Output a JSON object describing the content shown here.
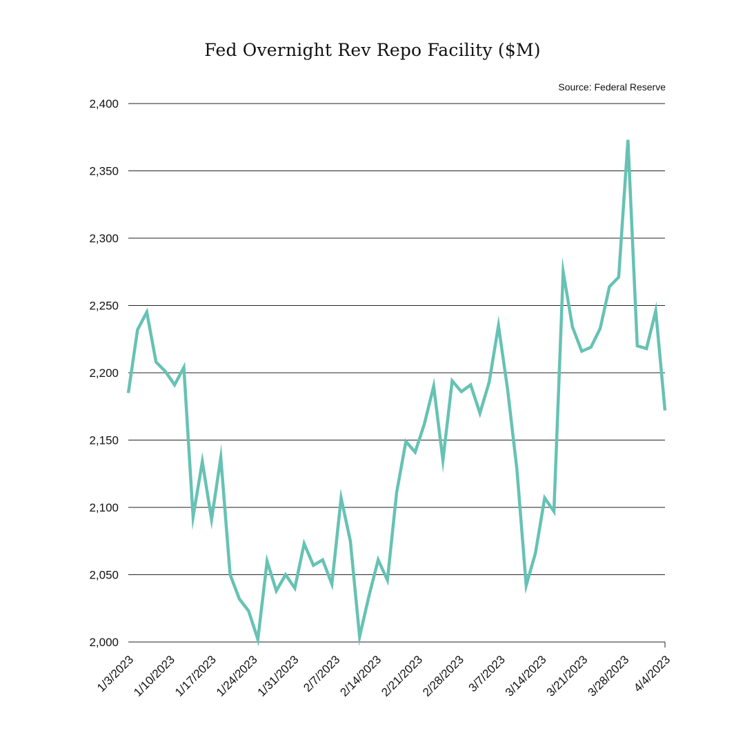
{
  "chart_data": {
    "type": "line",
    "title": "Fed Overnight Rev Repo Facility ($M)",
    "source": "Source: Federal Reserve",
    "xlabel": "",
    "ylabel": "",
    "ylim": [
      2000,
      2400
    ],
    "yticks": [
      2000,
      2050,
      2100,
      2150,
      2200,
      2250,
      2300,
      2350,
      2400
    ],
    "ytick_labels": [
      "2,000",
      "2,050",
      "2,100",
      "2,150",
      "2,200",
      "2,250",
      "2,300",
      "2,350",
      "2,400"
    ],
    "xtick_labels": [
      "1/3/2023",
      "1/10/2023",
      "1/17/2023",
      "1/24/2023",
      "1/31/2023",
      "2/7/2023",
      "2/14/2023",
      "2/21/2023",
      "2/28/2023",
      "3/7/2023",
      "3/14/2023",
      "3/21/2023",
      "3/28/2023",
      "4/4/2023"
    ],
    "grid": true,
    "line_color": "#66c2b4",
    "series": [
      {
        "values": [
          2185,
          2232,
          2245,
          2208,
          2201,
          2191,
          2204,
          2093,
          2134,
          2091,
          2137,
          2050,
          2032,
          2023,
          2002,
          2060,
          2038,
          2050,
          2040,
          2073,
          2057,
          2061,
          2043,
          2107,
          2075,
          2004,
          2034,
          2061,
          2046,
          2111,
          2149,
          2141,
          2162,
          2190,
          2135,
          2194,
          2186,
          2191,
          2170,
          2193,
          2235,
          2187,
          2128,
          2042,
          2066,
          2107,
          2097,
          2275,
          2234,
          2216,
          2219,
          2233,
          2264,
          2271,
          2373,
          2220,
          2218,
          2246,
          2172
        ]
      }
    ]
  }
}
